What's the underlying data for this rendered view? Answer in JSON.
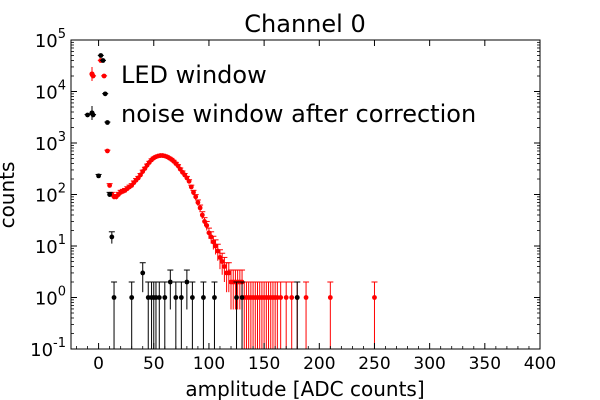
{
  "chart_data": {
    "type": "scatter",
    "title": "Channel 0",
    "xlabel": "amplitude [ADC counts]",
    "ylabel": "counts",
    "yscale": "log",
    "xlim": [
      -25,
      400
    ],
    "ylim": [
      0.1,
      100000
    ],
    "x_ticks": [
      0,
      50,
      100,
      150,
      200,
      250,
      300,
      350,
      400
    ],
    "x_tick_labels": [
      "0",
      "50",
      "100",
      "150",
      "200",
      "250",
      "300",
      "350",
      "400"
    ],
    "y_ticks": [
      0.1,
      1,
      10,
      100,
      1000,
      10000,
      100000
    ],
    "y_tick_labels": [
      {
        "base": "10",
        "exp": "-1"
      },
      {
        "base": "10",
        "exp": "0"
      },
      {
        "base": "10",
        "exp": "1"
      },
      {
        "base": "10",
        "exp": "2"
      },
      {
        "base": "10",
        "exp": "3"
      },
      {
        "base": "10",
        "exp": "4"
      },
      {
        "base": "10",
        "exp": "5"
      }
    ],
    "grid": false,
    "legend_position": "top-left",
    "series": [
      {
        "name": "LED window",
        "color": "#ff0000",
        "x": [
          -5,
          2,
          5,
          8,
          10,
          12,
          14,
          16,
          18,
          20,
          22,
          24,
          26,
          28,
          30,
          32,
          34,
          36,
          38,
          40,
          42,
          44,
          46,
          48,
          50,
          52,
          54,
          56,
          58,
          60,
          62,
          64,
          66,
          68,
          70,
          72,
          74,
          76,
          78,
          80,
          82,
          84,
          86,
          88,
          90,
          92,
          94,
          96,
          98,
          100,
          102,
          104,
          106,
          108,
          110,
          112,
          114,
          116,
          118,
          120,
          122,
          124,
          126,
          128,
          130,
          132,
          134,
          136,
          138,
          140,
          142,
          144,
          146,
          148,
          150,
          152,
          154,
          156,
          158,
          160,
          162,
          165,
          170,
          175,
          180,
          188,
          210,
          250
        ],
        "y": [
          20000,
          40000,
          20000,
          700,
          150,
          100,
          90,
          90,
          100,
          110,
          115,
          120,
          130,
          140,
          150,
          170,
          190,
          210,
          240,
          280,
          320,
          370,
          420,
          470,
          510,
          540,
          560,
          570,
          570,
          560,
          540,
          510,
          480,
          440,
          400,
          360,
          310,
          270,
          240,
          210,
          180,
          140,
          110,
          90,
          70,
          55,
          40,
          30,
          25,
          18,
          15,
          12,
          10,
          8,
          6,
          5,
          4,
          3,
          3,
          2,
          2,
          2,
          2,
          2,
          2,
          1,
          1,
          1,
          1,
          1,
          1,
          1,
          1,
          1,
          1,
          1,
          1,
          1,
          1,
          1,
          1,
          1,
          1,
          1,
          1,
          1,
          1,
          1
        ]
      },
      {
        "name": "noise window after correction",
        "color": "#000000",
        "x": [
          -10,
          -5,
          0,
          2,
          4,
          6,
          8,
          10,
          12,
          14,
          30,
          40,
          45,
          48,
          50,
          52,
          55,
          60,
          65,
          70,
          75,
          80,
          85,
          95,
          105,
          125,
          130,
          180
        ],
        "y": [
          3500,
          3500,
          230,
          50000,
          40000,
          9000,
          2500,
          100,
          15,
          1,
          1,
          3,
          1,
          1,
          1,
          1,
          1,
          1,
          2,
          1,
          1,
          2,
          1,
          1,
          1,
          1,
          1,
          1
        ]
      }
    ]
  }
}
